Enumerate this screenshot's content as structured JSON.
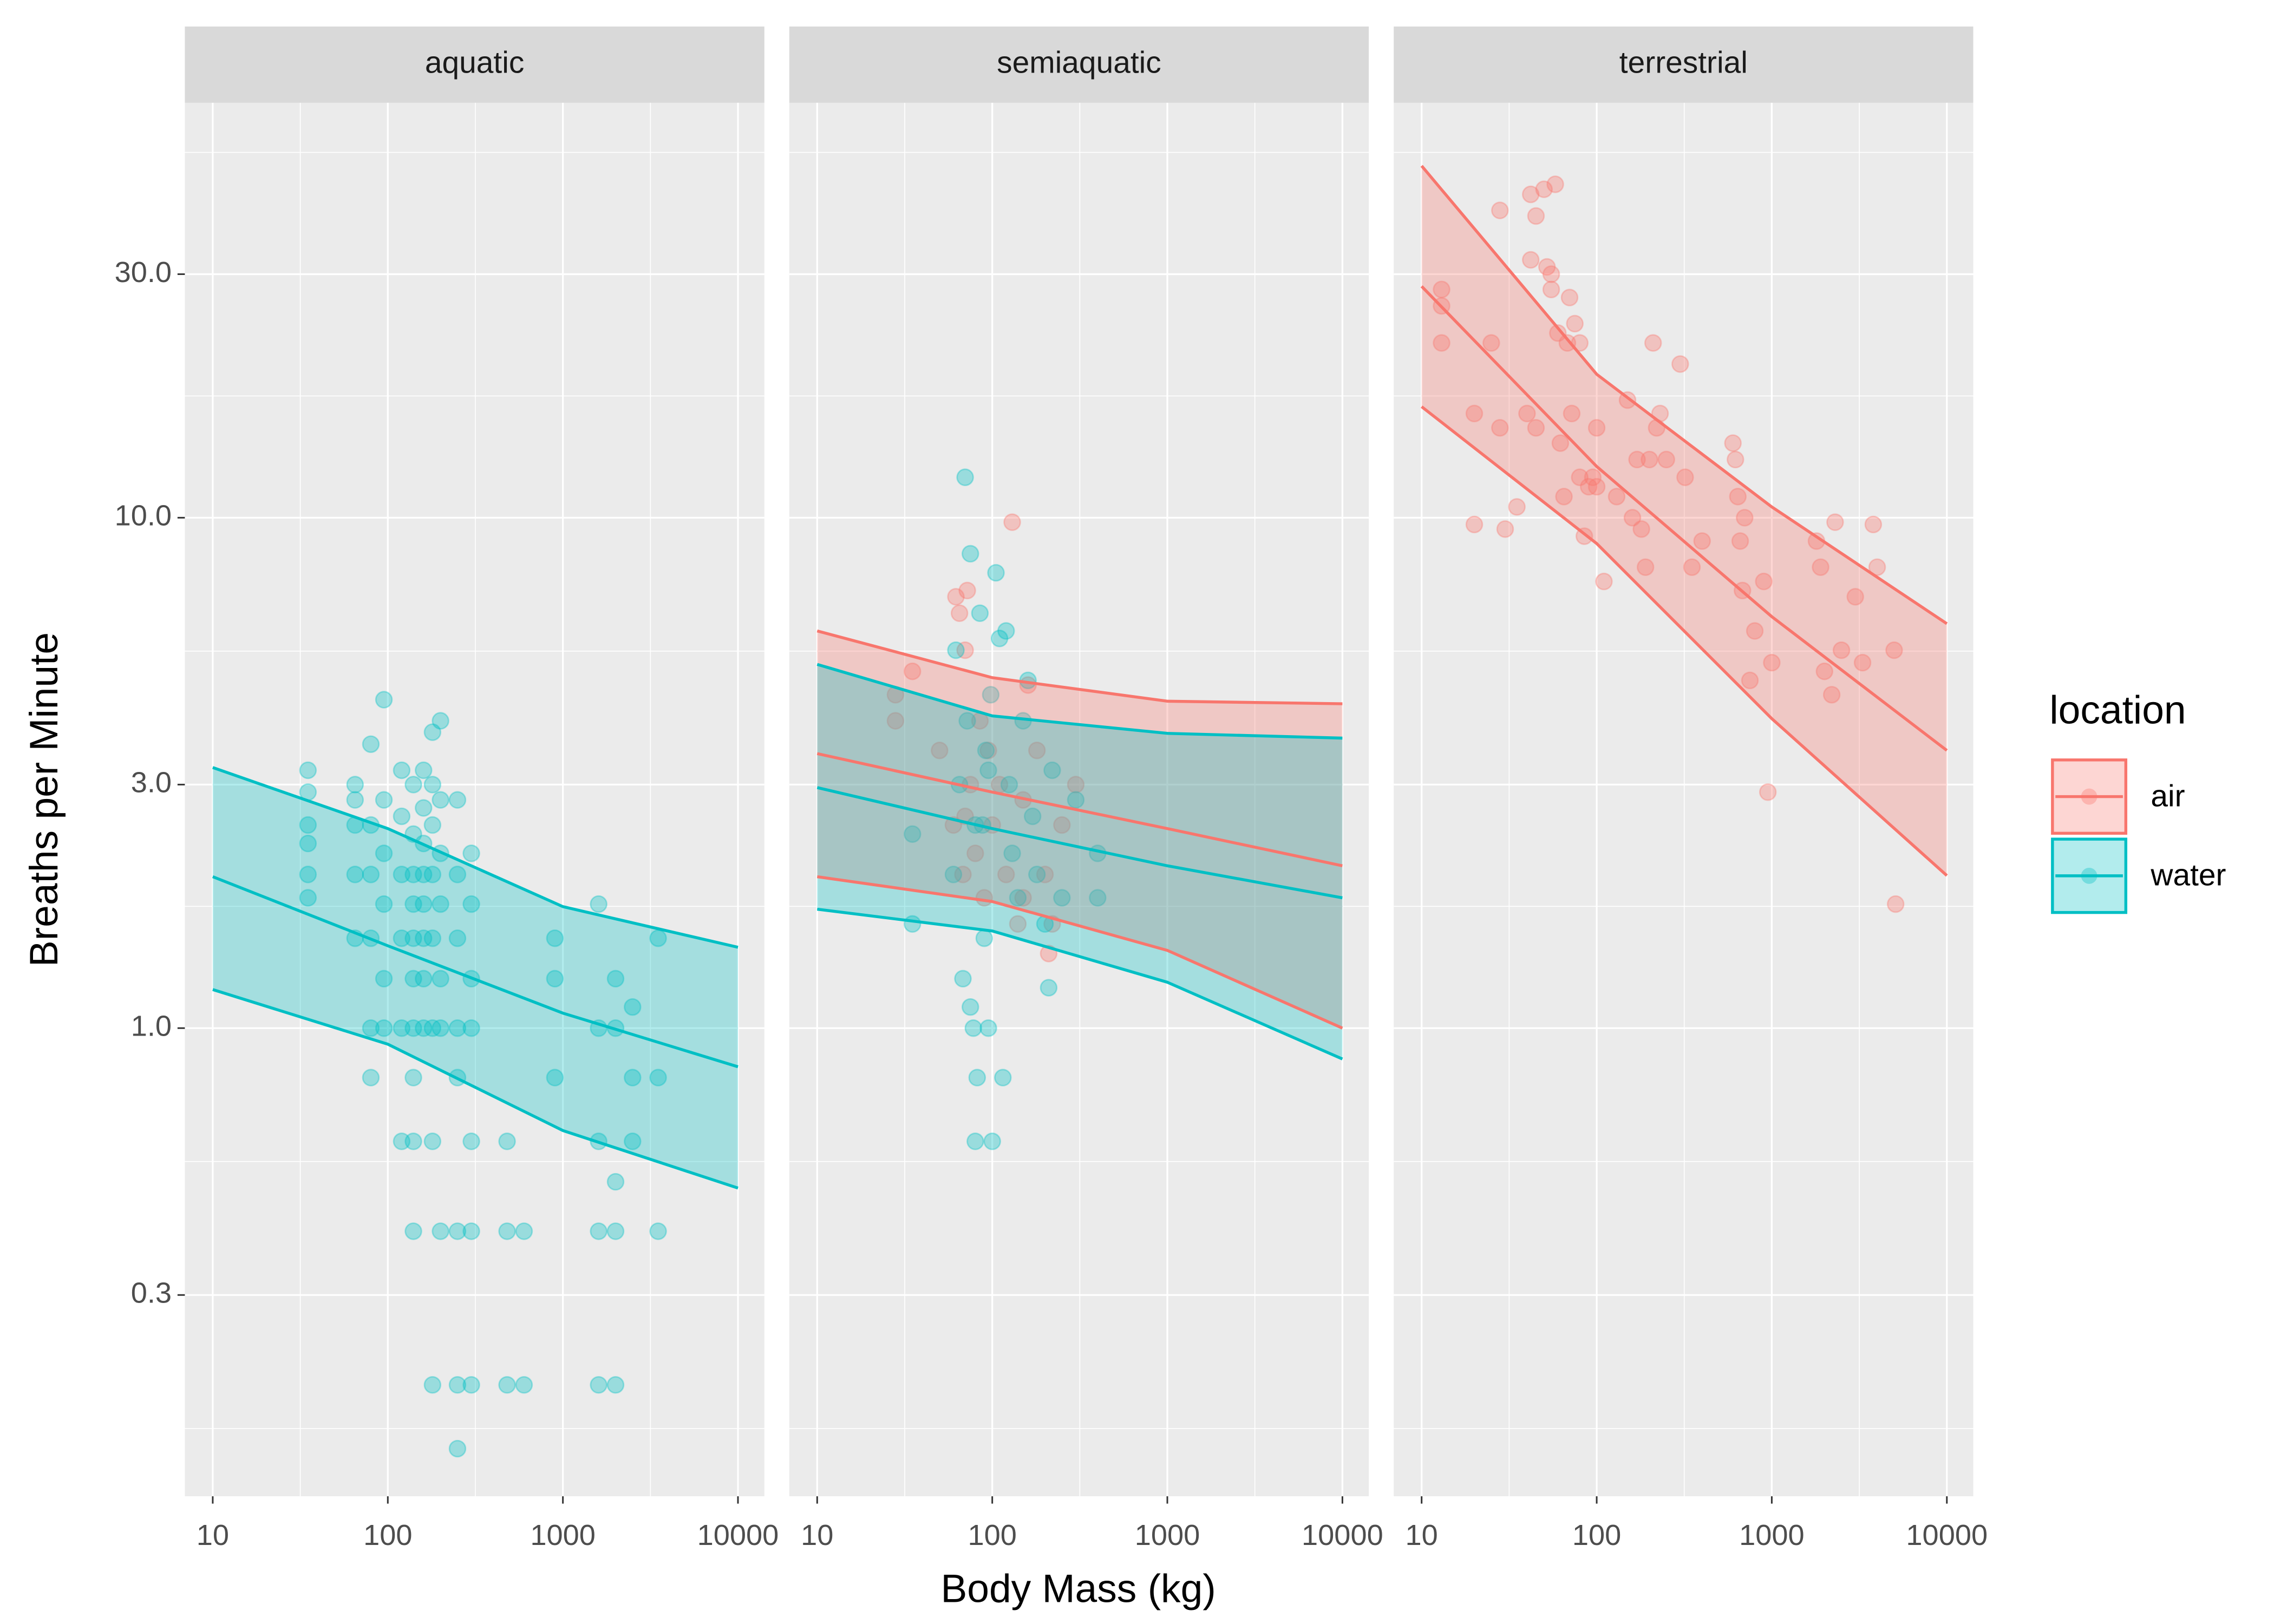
{
  "xlabel": "Body Mass (kg)",
  "ylabel": "Breaths per Minute",
  "legend": {
    "title": "location",
    "position": "right",
    "items": [
      {
        "name": "air",
        "color": "#F8766D"
      },
      {
        "name": "water",
        "color": "#00BFC4"
      }
    ]
  },
  "chart_data": [
    {
      "type": "scatter",
      "title": "aquatic",
      "log_x": true,
      "log_y": true,
      "grid": true,
      "xlim": [
        6.93,
        14150
      ],
      "xticks": [
        10,
        100,
        1000,
        10000
      ],
      "ylim": [
        0.121,
        65
      ],
      "yticks": [
        {
          "value": 0.3,
          "label": "0.3"
        },
        {
          "value": 1,
          "label": "1.0"
        },
        {
          "value": 3,
          "label": "3.0"
        },
        {
          "value": 10,
          "label": "10.0"
        },
        {
          "value": 30,
          "label": "30.0"
        }
      ],
      "series": [
        {
          "name": "water",
          "color": "#00BFC4",
          "x": [
            35,
            35,
            35,
            35,
            35,
            35,
            65,
            65,
            65,
            65,
            65,
            80,
            80,
            80,
            80,
            80,
            80,
            95,
            95,
            95,
            95,
            95,
            95,
            120,
            120,
            120,
            120,
            120,
            120,
            140,
            140,
            140,
            140,
            140,
            140,
            140,
            140,
            140,
            140,
            160,
            160,
            160,
            160,
            160,
            160,
            160,
            160,
            180,
            180,
            180,
            180,
            180,
            180,
            180,
            180,
            200,
            200,
            200,
            200,
            200,
            200,
            200,
            250,
            250,
            250,
            250,
            250,
            250,
            250,
            250,
            300,
            300,
            300,
            300,
            300,
            300,
            300,
            480,
            480,
            480,
            600,
            600,
            900,
            900,
            900,
            1600,
            1600,
            1600,
            1600,
            1600,
            2000,
            2000,
            2000,
            2000,
            2000,
            2500,
            2500,
            2500,
            3500,
            3500,
            3500
          ],
          "y": [
            3.2,
            2.9,
            2.5,
            2.3,
            2.0,
            1.8,
            3.0,
            2.8,
            2.5,
            2.0,
            1.5,
            3.6,
            2.5,
            2.0,
            1.5,
            1.0,
            0.8,
            4.4,
            2.8,
            2.2,
            1.75,
            1.25,
            1.0,
            3.2,
            2.6,
            2.0,
            1.5,
            1.0,
            0.6,
            3.0,
            2.4,
            2.0,
            1.75,
            1.5,
            1.25,
            1.0,
            0.8,
            0.6,
            0.4,
            3.2,
            2.7,
            2.3,
            2.0,
            1.75,
            1.5,
            1.25,
            1.0,
            3.8,
            3.0,
            2.5,
            2.0,
            1.5,
            1.0,
            0.6,
            0.2,
            4.0,
            2.8,
            2.2,
            1.75,
            1.25,
            1.0,
            0.4,
            2.8,
            2.0,
            1.5,
            1.0,
            0.8,
            0.4,
            0.2,
            0.15,
            2.2,
            1.75,
            1.25,
            1.0,
            0.6,
            0.4,
            0.2,
            0.6,
            0.4,
            0.2,
            0.4,
            0.2,
            1.5,
            1.25,
            0.8,
            1.75,
            1.0,
            0.6,
            0.4,
            0.2,
            1.25,
            1.0,
            0.5,
            0.4,
            0.2,
            1.1,
            0.8,
            0.6,
            1.5,
            0.8,
            0.4
          ],
          "fit": {
            "x": [
              10,
              100,
              1000,
              10000
            ],
            "lower": [
              1.19,
              0.93,
              0.63,
              0.486
            ],
            "fit": [
              1.98,
              1.45,
              1.07,
              0.84
            ],
            "upper": [
              3.24,
              2.46,
              1.73,
              1.44
            ]
          }
        }
      ]
    },
    {
      "type": "scatter",
      "title": "semiaquatic",
      "log_x": true,
      "log_y": true,
      "grid": true,
      "xlim": [
        6.93,
        14150
      ],
      "xticks": [
        10,
        100,
        1000,
        10000
      ],
      "ylim": [
        0.121,
        65
      ],
      "yticks": [
        {
          "value": 0.3,
          "label": "0.3"
        },
        {
          "value": 1,
          "label": "1.0"
        },
        {
          "value": 3,
          "label": "3.0"
        },
        {
          "value": 10,
          "label": "10.0"
        },
        {
          "value": 30,
          "label": "30.0"
        }
      ],
      "series": [
        {
          "name": "air",
          "color": "#F8766D",
          "x": [
            28,
            28,
            35,
            50,
            60,
            62,
            65,
            68,
            70,
            72,
            75,
            80,
            85,
            90,
            95,
            100,
            110,
            120,
            130,
            140,
            150,
            160,
            180,
            200,
            210,
            220,
            250,
            300,
            150,
            70
          ],
          "y": [
            4.5,
            4.0,
            5.0,
            3.5,
            2.5,
            7.0,
            6.5,
            2.0,
            5.5,
            7.2,
            3.0,
            2.2,
            4.0,
            1.8,
            3.5,
            2.5,
            3.0,
            2.0,
            9.8,
            1.6,
            2.8,
            4.7,
            3.5,
            2.0,
            1.4,
            1.6,
            2.5,
            3.0,
            1.8,
            2.6
          ],
          "fit": {
            "x": [
              10,
              100,
              1000,
              10000
            ],
            "lower": [
              1.98,
              1.77,
              1.42,
              1.0
            ],
            "fit": [
              3.45,
              2.9,
              2.46,
              2.08
            ],
            "upper": [
              6.0,
              4.86,
              4.37,
              4.32
            ]
          }
        },
        {
          "name": "water",
          "color": "#00BFC4",
          "x": [
            35,
            35,
            60,
            62,
            65,
            68,
            70,
            72,
            75,
            78,
            80,
            82,
            85,
            88,
            90,
            92,
            95,
            98,
            100,
            105,
            110,
            115,
            120,
            125,
            130,
            140,
            150,
            160,
            170,
            180,
            200,
            210,
            220,
            250,
            300,
            400,
            400,
            80,
            95,
            75
          ],
          "y": [
            2.4,
            1.6,
            2.0,
            5.5,
            3.0,
            1.25,
            12.0,
            4.0,
            8.5,
            1.0,
            0.6,
            0.8,
            6.5,
            2.5,
            1.5,
            3.5,
            1.0,
            4.5,
            0.6,
            7.8,
            5.8,
            0.8,
            6.0,
            3.0,
            2.2,
            1.8,
            4.0,
            4.8,
            2.6,
            2.0,
            1.6,
            1.2,
            3.2,
            1.8,
            2.8,
            1.8,
            2.2,
            2.5,
            3.2,
            1.1
          ],
          "fit": {
            "x": [
              10,
              100,
              1000,
              10000
            ],
            "lower": [
              1.71,
              1.55,
              1.23,
              0.87
            ],
            "fit": [
              2.96,
              2.46,
              2.08,
              1.8
            ],
            "upper": [
              5.16,
              4.09,
              3.78,
              3.7
            ]
          }
        }
      ]
    },
    {
      "type": "scatter",
      "title": "terrestrial",
      "log_x": true,
      "log_y": true,
      "grid": true,
      "xlim": [
        6.93,
        14150
      ],
      "xticks": [
        10,
        100,
        1000,
        10000
      ],
      "ylim": [
        0.121,
        65
      ],
      "yticks": [
        {
          "value": 0.3,
          "label": "0.3"
        },
        {
          "value": 1,
          "label": "1.0"
        },
        {
          "value": 3,
          "label": "3.0"
        },
        {
          "value": 10,
          "label": "10.0"
        },
        {
          "value": 30,
          "label": "30.0"
        }
      ],
      "series": [
        {
          "name": "air",
          "color": "#F8766D",
          "x": [
            13,
            13,
            13,
            20,
            20,
            25,
            28,
            28,
            30,
            35,
            40,
            42,
            42,
            45,
            45,
            50,
            52,
            55,
            55,
            58,
            60,
            62,
            65,
            68,
            70,
            72,
            75,
            80,
            80,
            85,
            90,
            95,
            100,
            100,
            110,
            130,
            150,
            160,
            170,
            180,
            190,
            200,
            210,
            220,
            230,
            250,
            300,
            320,
            350,
            400,
            600,
            620,
            640,
            660,
            680,
            700,
            750,
            800,
            900,
            950,
            1000,
            1800,
            1900,
            2000,
            2200,
            2300,
            2500,
            3000,
            3300,
            3800,
            4000,
            5000,
            5100
          ],
          "y": [
            28,
            26,
            22,
            16,
            9.7,
            22,
            15,
            40,
            9.5,
            10.5,
            16,
            43,
            32,
            39,
            15,
            44,
            31,
            30,
            28,
            45,
            23,
            14,
            11,
            22,
            27,
            16,
            24,
            12,
            22,
            9.2,
            11.5,
            12,
            11.5,
            15,
            7.5,
            11,
            17,
            10,
            13,
            9.5,
            8,
            13,
            22,
            15,
            16,
            13,
            20,
            12,
            8,
            9,
            14,
            13,
            11,
            9,
            7.2,
            10,
            4.8,
            6,
            7.5,
            2.9,
            5.2,
            9,
            8,
            5,
            4.5,
            9.8,
            5.5,
            7,
            5.2,
            9.7,
            8,
            5.5,
            1.75
          ],
          "fit": {
            "x": [
              10,
              100,
              1000,
              10000
            ],
            "lower": [
              16.5,
              8.9,
              4.04,
              1.99
            ],
            "fit": [
              28.4,
              12.6,
              6.4,
              3.5
            ],
            "upper": [
              48.9,
              19.1,
              10.5,
              6.2
            ]
          }
        }
      ]
    }
  ]
}
